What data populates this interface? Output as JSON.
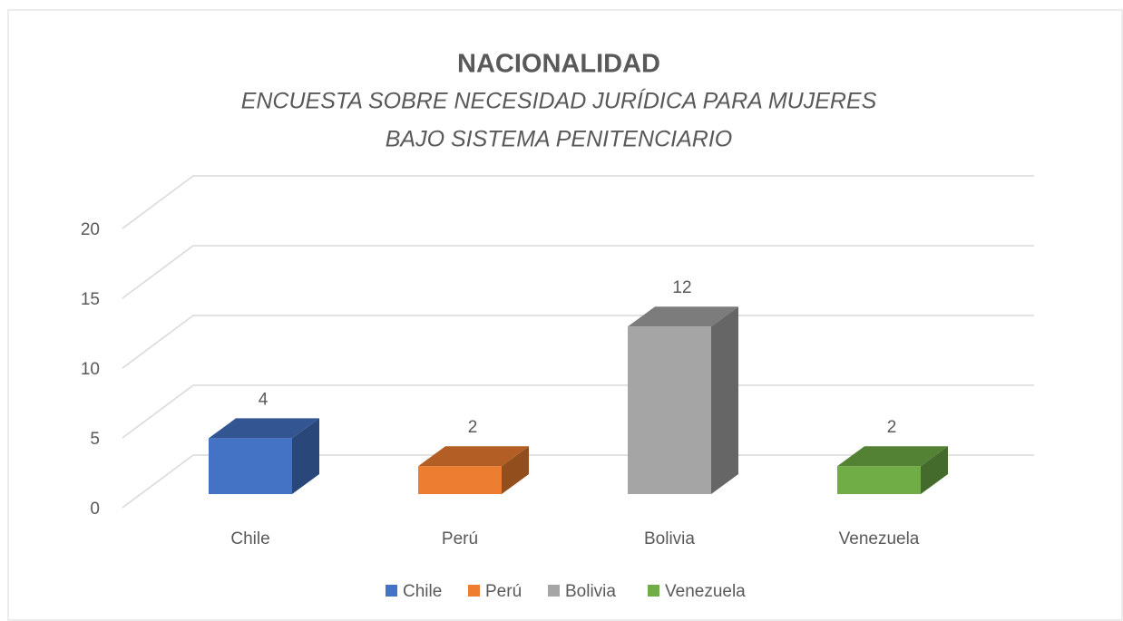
{
  "chart_data": {
    "type": "bar3d",
    "title": "NACIONALIDAD",
    "subtitle": [
      "ENCUESTA SOBRE NECESIDAD JURÍDICA PARA MUJERES",
      "BAJO SISTEMA PENITENCIARIO"
    ],
    "categories": [
      "Chile",
      "Perú",
      "Bolivia",
      "Venezuela"
    ],
    "values": [
      4,
      2,
      12,
      2
    ],
    "colors": [
      "#4472c4",
      "#ed7d31",
      "#a5a5a5",
      "#70ad47"
    ],
    "ylim": [
      0,
      20
    ],
    "yticks": [
      0,
      5,
      10,
      15,
      20
    ],
    "grid": true,
    "legend": "bottom"
  }
}
